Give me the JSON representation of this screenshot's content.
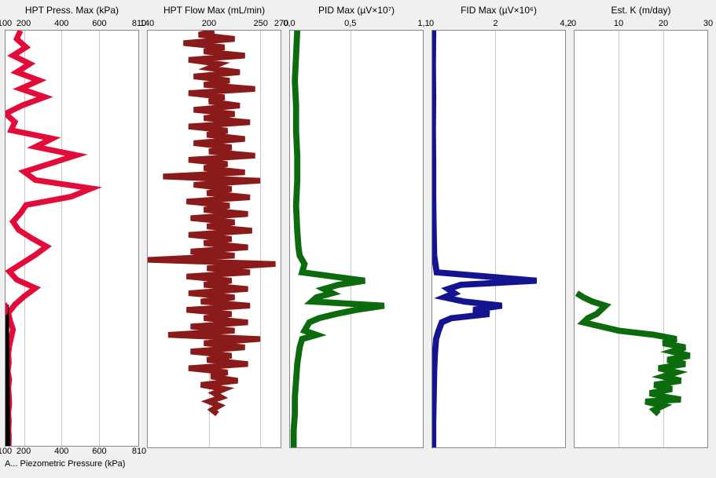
{
  "global": {
    "background": "#f0f0f0",
    "plot_background": "#ffffff",
    "border_color": "#888888",
    "gridline_color": "#c8c8c8",
    "text_color": "#000000",
    "font_family": "Arial",
    "title_fontsize": 12,
    "tick_fontsize": 11,
    "depth_range": [
      0,
      100
    ]
  },
  "panels": [
    {
      "id": "hpt-press",
      "title": "HPT Press. Max (kPa)",
      "xmin": 100,
      "xmax": 810,
      "ticks": [
        100,
        200,
        400,
        600,
        810
      ],
      "ticks_bottom": [
        100,
        200,
        400,
        600,
        810
      ],
      "series": [
        {
          "name": "hpt-press-max",
          "color": "#e30b3a",
          "width": 1.2,
          "points": [
            [
              180,
              0
            ],
            [
              160,
              2
            ],
            [
              210,
              4
            ],
            [
              140,
              6
            ],
            [
              230,
              8
            ],
            [
              160,
              10
            ],
            [
              280,
              12
            ],
            [
              180,
              14
            ],
            [
              310,
              16
            ],
            [
              190,
              18
            ],
            [
              100,
              20
            ],
            [
              150,
              22
            ],
            [
              130,
              24
            ],
            [
              350,
              26
            ],
            [
              260,
              28
            ],
            [
              480,
              30
            ],
            [
              340,
              32
            ],
            [
              200,
              34
            ],
            [
              260,
              36
            ],
            [
              560,
              38
            ],
            [
              450,
              40
            ],
            [
              210,
              42
            ],
            [
              180,
              44
            ],
            [
              140,
              46
            ],
            [
              170,
              48
            ],
            [
              240,
              50
            ],
            [
              320,
              52
            ],
            [
              260,
              54
            ],
            [
              190,
              56
            ],
            [
              120,
              58
            ],
            [
              160,
              60
            ],
            [
              260,
              62
            ],
            [
              200,
              64
            ],
            [
              150,
              66
            ],
            [
              115,
              68
            ],
            [
              125,
              70
            ],
            [
              140,
              72
            ],
            [
              130,
              74
            ],
            [
              120,
              76
            ],
            [
              115,
              78
            ],
            [
              118,
              80
            ],
            [
              112,
              82
            ],
            [
              120,
              84
            ],
            [
              115,
              86
            ],
            [
              118,
              88
            ],
            [
              120,
              90
            ],
            [
              115,
              92
            ],
            [
              118,
              94
            ],
            [
              116,
              96
            ],
            [
              118,
              98
            ],
            [
              117,
              100
            ]
          ]
        },
        {
          "name": "piezometric",
          "color": "#000000",
          "width": 1.4,
          "points": [
            [
              100,
              66
            ],
            [
              108,
              100
            ]
          ]
        }
      ],
      "markers": [
        {
          "name": "red-dot",
          "shape": "circle",
          "color": "#e30b3a",
          "x": 104,
          "y": 67,
          "size": 5
        },
        {
          "name": "arrow-up-1",
          "shape": "triangle-up",
          "color": "#000000",
          "x": 105,
          "y": 78,
          "size": 6
        },
        {
          "name": "arrow-up-2",
          "shape": "triangle-up",
          "color": "#000000",
          "x": 108,
          "y": 97,
          "size": 6
        }
      ],
      "bottom_label": "A... Piezometric Pressure (kPa)"
    },
    {
      "id": "hpt-flow",
      "title": "HPT Flow Max (mL/min)",
      "xmin": 140,
      "xmax": 270,
      "ticks": [
        140,
        200,
        250,
        270
      ],
      "series": [
        {
          "name": "hpt-flow-max",
          "color": "#8b1a1a",
          "width": 1.2,
          "points": [
            [
              205,
              0
            ],
            [
              190,
              1
            ],
            [
              225,
              2
            ],
            [
              175,
              3
            ],
            [
              215,
              4
            ],
            [
              195,
              5
            ],
            [
              235,
              6
            ],
            [
              180,
              7
            ],
            [
              210,
              8
            ],
            [
              200,
              9
            ],
            [
              230,
              10
            ],
            [
              185,
              11
            ],
            [
              220,
              12
            ],
            [
              195,
              13
            ],
            [
              245,
              14
            ],
            [
              180,
              15
            ],
            [
              215,
              16
            ],
            [
              200,
              17
            ],
            [
              230,
              18
            ],
            [
              185,
              19
            ],
            [
              225,
              20
            ],
            [
              195,
              21
            ],
            [
              240,
              22
            ],
            [
              180,
              23
            ],
            [
              218,
              24
            ],
            [
              198,
              25
            ],
            [
              235,
              26
            ],
            [
              185,
              27
            ],
            [
              222,
              28
            ],
            [
              200,
              29
            ],
            [
              245,
              30
            ],
            [
              180,
              31
            ],
            [
              218,
              32
            ],
            [
              195,
              33
            ],
            [
              235,
              34
            ],
            [
              155,
              35
            ],
            [
              250,
              36
            ],
            [
              185,
              37
            ],
            [
              222,
              38
            ],
            [
              198,
              39
            ],
            [
              240,
              40
            ],
            [
              178,
              41
            ],
            [
              220,
              42
            ],
            [
              195,
              43
            ],
            [
              238,
              44
            ],
            [
              182,
              45
            ],
            [
              225,
              46
            ],
            [
              198,
              47
            ],
            [
              242,
              48
            ],
            [
              180,
              49
            ],
            [
              222,
              50
            ],
            [
              195,
              51
            ],
            [
              238,
              52
            ],
            [
              182,
              53
            ],
            [
              225,
              54
            ],
            [
              140,
              55
            ],
            [
              265,
              56
            ],
            [
              198,
              57
            ],
            [
              240,
              58
            ],
            [
              178,
              59
            ],
            [
              222,
              60
            ],
            [
              195,
              61
            ],
            [
              238,
              62
            ],
            [
              180,
              63
            ],
            [
              225,
              64
            ],
            [
              192,
              65
            ],
            [
              240,
              66
            ],
            [
              178,
              67
            ],
            [
              222,
              68
            ],
            [
              195,
              69
            ],
            [
              238,
              70
            ],
            [
              182,
              71
            ],
            [
              225,
              72
            ],
            [
              160,
              73
            ],
            [
              250,
              74
            ],
            [
              195,
              75
            ],
            [
              235,
              76
            ],
            [
              182,
              77
            ],
            [
              222,
              78
            ],
            [
              198,
              79
            ],
            [
              238,
              80
            ],
            [
              180,
              81
            ],
            [
              218,
              82
            ],
            [
              202,
              83
            ],
            [
              228,
              84
            ],
            [
              192,
              85
            ],
            [
              215,
              86
            ],
            [
              205,
              87
            ],
            [
              212,
              88
            ],
            [
              200,
              89
            ],
            [
              210,
              90
            ],
            [
              203,
              91
            ],
            [
              208,
              92
            ]
          ]
        }
      ]
    },
    {
      "id": "pid",
      "title": "PID Max (µV×10⁷)",
      "xmin": 0.0,
      "xmax": 1.1,
      "ticks": [
        0.0,
        0.5,
        1.1
      ],
      "tick_labels": [
        "0,0",
        "0,5",
        "1,1"
      ],
      "series": [
        {
          "name": "pid-max",
          "color": "#0c6b0c",
          "width": 1.3,
          "points": [
            [
              0.06,
              0
            ],
            [
              0.05,
              6
            ],
            [
              0.04,
              12
            ],
            [
              0.05,
              18
            ],
            [
              0.05,
              24
            ],
            [
              0.06,
              30
            ],
            [
              0.06,
              36
            ],
            [
              0.05,
              42
            ],
            [
              0.06,
              48
            ],
            [
              0.07,
              52
            ],
            [
              0.08,
              54
            ],
            [
              0.12,
              56
            ],
            [
              0.1,
              58
            ],
            [
              0.62,
              60
            ],
            [
              0.4,
              61
            ],
            [
              0.28,
              62
            ],
            [
              0.35,
              63
            ],
            [
              0.22,
              64
            ],
            [
              0.18,
              65
            ],
            [
              0.78,
              66
            ],
            [
              0.55,
              67
            ],
            [
              0.38,
              68
            ],
            [
              0.24,
              69
            ],
            [
              0.16,
              70
            ],
            [
              0.12,
              72
            ],
            [
              0.22,
              73
            ],
            [
              0.1,
              74
            ],
            [
              0.08,
              76
            ],
            [
              0.06,
              80
            ],
            [
              0.05,
              84
            ],
            [
              0.04,
              88
            ],
            [
              0.04,
              92
            ],
            [
              0.03,
              96
            ],
            [
              0.03,
              100
            ]
          ]
        }
      ]
    },
    {
      "id": "fid",
      "title": "FID Max (µV×10⁶)",
      "xmin": 0,
      "xmax": 4.2,
      "ticks": [
        0,
        2,
        4.2
      ],
      "tick_labels": [
        "0",
        "2",
        "4,2"
      ],
      "series": [
        {
          "name": "fid-max",
          "color": "#141490",
          "width": 1.3,
          "points": [
            [
              0.03,
              0
            ],
            [
              0.02,
              8
            ],
            [
              0.03,
              16
            ],
            [
              0.02,
              24
            ],
            [
              0.03,
              32
            ],
            [
              0.03,
              40
            ],
            [
              0.04,
              46
            ],
            [
              0.05,
              50
            ],
            [
              0.06,
              54
            ],
            [
              0.1,
              56
            ],
            [
              0.14,
              58
            ],
            [
              3.3,
              60
            ],
            [
              0.9,
              61
            ],
            [
              0.5,
              62
            ],
            [
              0.7,
              63
            ],
            [
              0.38,
              64
            ],
            [
              1.0,
              65
            ],
            [
              2.2,
              66
            ],
            [
              1.3,
              67
            ],
            [
              1.8,
              68
            ],
            [
              0.6,
              69
            ],
            [
              0.3,
              70
            ],
            [
              0.2,
              72
            ],
            [
              0.12,
              74
            ],
            [
              0.08,
              78
            ],
            [
              0.06,
              82
            ],
            [
              0.05,
              86
            ],
            [
              0.04,
              90
            ],
            [
              0.03,
              94
            ],
            [
              0.03,
              100
            ]
          ]
        }
      ]
    },
    {
      "id": "est-k",
      "title": "Est. K (m/day)",
      "xmin": 0,
      "xmax": 30,
      "ticks": [
        0,
        10,
        20,
        30
      ],
      "series": [
        {
          "name": "est-k",
          "color": "#0c6b0c",
          "width": 1.3,
          "points": [
            [
              0.5,
              63
            ],
            [
              2,
              64
            ],
            [
              4,
              65
            ],
            [
              7,
              66
            ],
            [
              6,
              67
            ],
            [
              5,
              68
            ],
            [
              3,
              69
            ],
            [
              2,
              70
            ],
            [
              10,
              72
            ],
            [
              18,
              73
            ],
            [
              23,
              74
            ],
            [
              20,
              75
            ],
            [
              25,
              76
            ],
            [
              22,
              77
            ],
            [
              26,
              78
            ],
            [
              21,
              79
            ],
            [
              25,
              80
            ],
            [
              19,
              81
            ],
            [
              23,
              82
            ],
            [
              20,
              83
            ],
            [
              24,
              84
            ],
            [
              18,
              85
            ],
            [
              22,
              86
            ],
            [
              17,
              87
            ],
            [
              21,
              88
            ],
            [
              24,
              88.5
            ],
            [
              16,
              89
            ],
            [
              20,
              90
            ],
            [
              18,
              91
            ],
            [
              19,
              92
            ]
          ]
        }
      ]
    }
  ]
}
